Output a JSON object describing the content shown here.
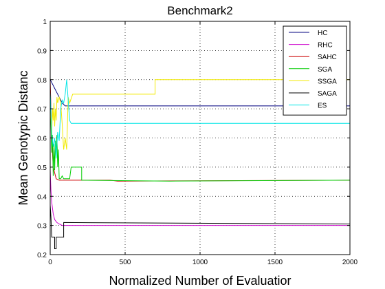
{
  "chart_data": {
    "type": "line",
    "title": "Benchmark2",
    "xlabel": "Normalized Number of Evaluatior",
    "ylabel": "Mean Genotypic Distanc",
    "xlim": [
      0,
      2000
    ],
    "ylim": [
      0.2,
      1
    ],
    "xticks": [
      0,
      500,
      1000,
      1500,
      2000
    ],
    "yticks": [
      0.2,
      0.3,
      0.4,
      0.5,
      0.6,
      0.7,
      0.8,
      0.9,
      1
    ],
    "xtick_labels": [
      "0",
      "500",
      "1000",
      "1500",
      "2000"
    ],
    "ytick_labels": [
      "0.2",
      "0.3",
      "0.4",
      "0.5",
      "0.6",
      "0.7",
      "0.8",
      "0.9",
      "1"
    ],
    "grid": true,
    "legend_position": "top-right",
    "series": [
      {
        "name": "HC",
        "color": "#00007f",
        "points": [
          [
            0,
            0.8
          ],
          [
            20,
            0.78
          ],
          [
            40,
            0.76
          ],
          [
            60,
            0.74
          ],
          [
            80,
            0.72
          ],
          [
            100,
            0.71
          ],
          [
            2000,
            0.71
          ]
        ]
      },
      {
        "name": "RHC",
        "color": "#cc00cc",
        "points": [
          [
            0,
            0.49
          ],
          [
            5,
            0.42
          ],
          [
            10,
            0.38
          ],
          [
            20,
            0.34
          ],
          [
            30,
            0.32
          ],
          [
            45,
            0.31
          ],
          [
            60,
            0.305
          ],
          [
            80,
            0.3
          ],
          [
            100,
            0.3
          ],
          [
            2000,
            0.3
          ]
        ]
      },
      {
        "name": "SAHC",
        "color": "#cc0000",
        "points": [
          [
            0,
            0.8
          ],
          [
            10,
            0.6
          ],
          [
            20,
            0.5
          ],
          [
            40,
            0.46
          ],
          [
            60,
            0.455
          ],
          [
            400,
            0.455
          ],
          [
            450,
            0.452
          ],
          [
            2000,
            0.455
          ]
        ]
      },
      {
        "name": "SGA",
        "color": "#00cc00",
        "points": [
          [
            0,
            0.75
          ],
          [
            10,
            0.55
          ],
          [
            15,
            0.61
          ],
          [
            20,
            0.47
          ],
          [
            25,
            0.58
          ],
          [
            30,
            0.49
          ],
          [
            35,
            0.59
          ],
          [
            40,
            0.55
          ],
          [
            45,
            0.61
          ],
          [
            50,
            0.5
          ],
          [
            55,
            0.56
          ],
          [
            60,
            0.46
          ],
          [
            70,
            0.46
          ],
          [
            80,
            0.47
          ],
          [
            90,
            0.46
          ],
          [
            130,
            0.46
          ],
          [
            140,
            0.5
          ],
          [
            210,
            0.5
          ],
          [
            210,
            0.455
          ],
          [
            800,
            0.452
          ],
          [
            2000,
            0.455
          ]
        ]
      },
      {
        "name": "SSGA",
        "color": "#f2ea00",
        "points": [
          [
            0,
            0.73
          ],
          [
            10,
            0.61
          ],
          [
            15,
            0.7
          ],
          [
            20,
            0.66
          ],
          [
            25,
            0.72
          ],
          [
            30,
            0.64
          ],
          [
            35,
            0.7
          ],
          [
            40,
            0.66
          ],
          [
            45,
            0.74
          ],
          [
            50,
            0.72
          ],
          [
            60,
            0.74
          ],
          [
            70,
            0.72
          ],
          [
            80,
            0.65
          ],
          [
            90,
            0.56
          ],
          [
            100,
            0.6
          ],
          [
            110,
            0.56
          ],
          [
            120,
            0.74
          ],
          [
            130,
            0.72
          ],
          [
            150,
            0.75
          ],
          [
            700,
            0.75
          ],
          [
            700,
            0.8
          ],
          [
            2000,
            0.8
          ]
        ]
      },
      {
        "name": "SAGA",
        "color": "#000000",
        "points": [
          [
            0,
            0.37
          ],
          [
            5,
            0.33
          ],
          [
            10,
            0.26
          ],
          [
            30,
            0.26
          ],
          [
            30,
            0.22
          ],
          [
            40,
            0.22
          ],
          [
            40,
            0.26
          ],
          [
            90,
            0.26
          ],
          [
            90,
            0.31
          ],
          [
            2000,
            0.305
          ]
        ]
      },
      {
        "name": "ES",
        "color": "#00e5e5",
        "points": [
          [
            0,
            0.76
          ],
          [
            10,
            0.62
          ],
          [
            20,
            0.57
          ],
          [
            30,
            0.6
          ],
          [
            40,
            0.53
          ],
          [
            50,
            0.62
          ],
          [
            60,
            0.59
          ],
          [
            70,
            0.7
          ],
          [
            80,
            0.73
          ],
          [
            90,
            0.72
          ],
          [
            100,
            0.75
          ],
          [
            110,
            0.8
          ],
          [
            120,
            0.73
          ],
          [
            130,
            0.66
          ],
          [
            140,
            0.65
          ],
          [
            2000,
            0.65
          ]
        ]
      }
    ]
  }
}
